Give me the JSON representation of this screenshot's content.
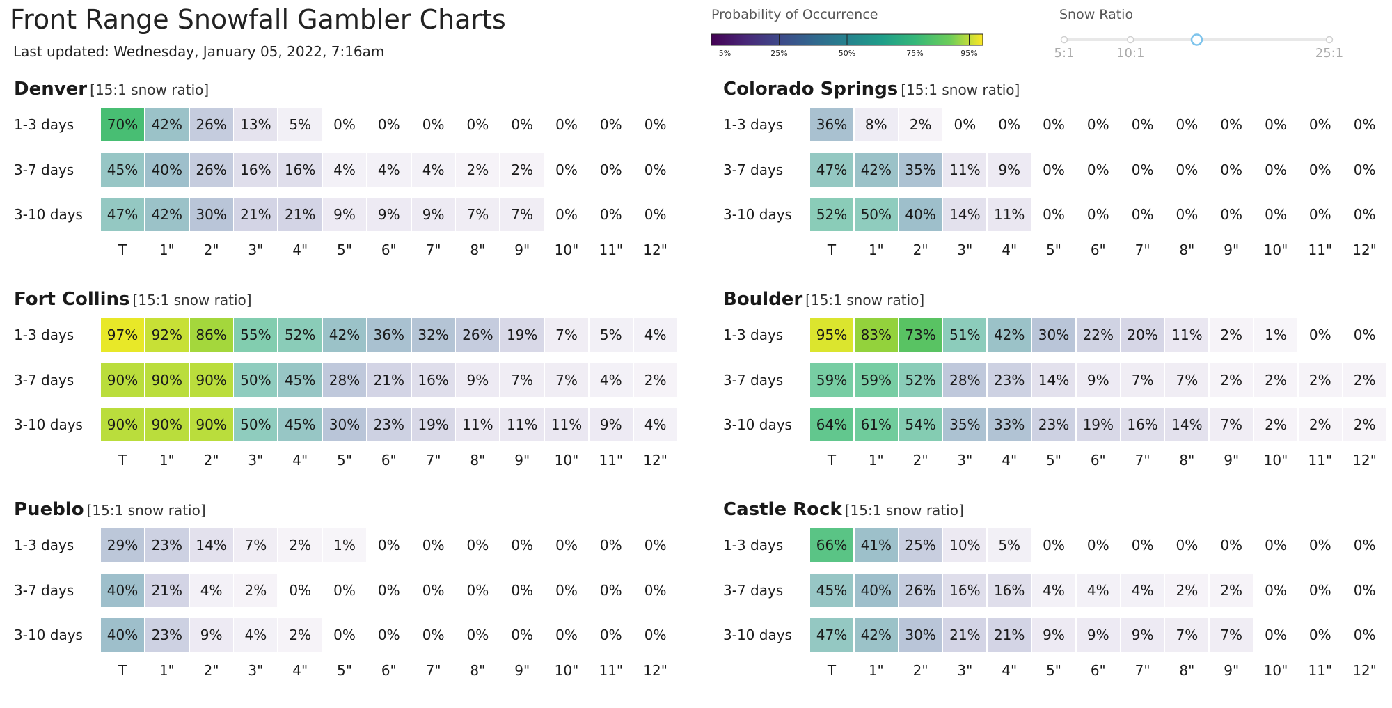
{
  "header": {
    "title": "Front Range Snowfall Gambler Charts",
    "updated": "Last updated: Wednesday, January 05, 2022, 7:16am"
  },
  "legend": {
    "title": "Probability of Occurrence",
    "ticks": [
      "5%",
      "25%",
      "50%",
      "75%",
      "95%"
    ],
    "scale": "viridis-light"
  },
  "snow_ratio": {
    "title": "Snow Ratio",
    "labels": [
      "5:1",
      "10:1",
      "25:1"
    ],
    "selected": "15:1"
  },
  "chart_data": [
    {
      "type": "heatmap",
      "title": "Denver",
      "subtitle": "[15:1 snow ratio]",
      "rows": [
        "1-3 days",
        "3-7 days",
        "3-10 days"
      ],
      "columns": [
        "T",
        "1\"",
        "2\"",
        "3\"",
        "4\"",
        "5\"",
        "6\"",
        "7\"",
        "8\"",
        "9\"",
        "10\"",
        "11\"",
        "12\""
      ],
      "values": [
        [
          70,
          42,
          26,
          13,
          5,
          0,
          0,
          0,
          0,
          0,
          0,
          0,
          0
        ],
        [
          45,
          40,
          26,
          16,
          16,
          4,
          4,
          4,
          2,
          2,
          0,
          0,
          0
        ],
        [
          47,
          42,
          30,
          21,
          21,
          9,
          9,
          9,
          7,
          7,
          0,
          0,
          0
        ]
      ]
    },
    {
      "type": "heatmap",
      "title": "Colorado Springs",
      "subtitle": "[15:1 snow ratio]",
      "rows": [
        "1-3 days",
        "3-7 days",
        "3-10 days"
      ],
      "columns": [
        "T",
        "1\"",
        "2\"",
        "3\"",
        "4\"",
        "5\"",
        "6\"",
        "7\"",
        "8\"",
        "9\"",
        "10\"",
        "11\"",
        "12\""
      ],
      "values": [
        [
          36,
          8,
          2,
          0,
          0,
          0,
          0,
          0,
          0,
          0,
          0,
          0,
          0
        ],
        [
          47,
          42,
          35,
          11,
          9,
          0,
          0,
          0,
          0,
          0,
          0,
          0,
          0
        ],
        [
          52,
          50,
          40,
          14,
          11,
          0,
          0,
          0,
          0,
          0,
          0,
          0,
          0
        ]
      ]
    },
    {
      "type": "heatmap",
      "title": "Fort Collins",
      "subtitle": "[15:1 snow ratio]",
      "rows": [
        "1-3 days",
        "3-7 days",
        "3-10 days"
      ],
      "columns": [
        "T",
        "1\"",
        "2\"",
        "3\"",
        "4\"",
        "5\"",
        "6\"",
        "7\"",
        "8\"",
        "9\"",
        "10\"",
        "11\"",
        "12\""
      ],
      "values": [
        [
          97,
          92,
          86,
          55,
          52,
          42,
          36,
          32,
          26,
          19,
          7,
          5,
          4
        ],
        [
          90,
          90,
          90,
          50,
          45,
          28,
          21,
          16,
          9,
          7,
          7,
          4,
          2
        ],
        [
          90,
          90,
          90,
          50,
          45,
          30,
          23,
          19,
          11,
          11,
          11,
          9,
          4
        ]
      ]
    },
    {
      "type": "heatmap",
      "title": "Boulder",
      "subtitle": "[15:1 snow ratio]",
      "rows": [
        "1-3 days",
        "3-7 days",
        "3-10 days"
      ],
      "columns": [
        "T",
        "1\"",
        "2\"",
        "3\"",
        "4\"",
        "5\"",
        "6\"",
        "7\"",
        "8\"",
        "9\"",
        "10\"",
        "11\"",
        "12\""
      ],
      "values": [
        [
          95,
          83,
          73,
          51,
          42,
          30,
          22,
          20,
          11,
          2,
          1,
          0,
          0
        ],
        [
          59,
          59,
          52,
          28,
          23,
          14,
          9,
          7,
          7,
          2,
          2,
          2,
          2
        ],
        [
          64,
          61,
          54,
          35,
          33,
          23,
          19,
          16,
          14,
          7,
          2,
          2,
          2
        ]
      ]
    },
    {
      "type": "heatmap",
      "title": "Pueblo",
      "subtitle": "[15:1 snow ratio]",
      "rows": [
        "1-3 days",
        "3-7 days",
        "3-10 days"
      ],
      "columns": [
        "T",
        "1\"",
        "2\"",
        "3\"",
        "4\"",
        "5\"",
        "6\"",
        "7\"",
        "8\"",
        "9\"",
        "10\"",
        "11\"",
        "12\""
      ],
      "values": [
        [
          29,
          23,
          14,
          7,
          2,
          1,
          0,
          0,
          0,
          0,
          0,
          0,
          0
        ],
        [
          40,
          21,
          4,
          2,
          0,
          0,
          0,
          0,
          0,
          0,
          0,
          0,
          0
        ],
        [
          40,
          23,
          9,
          4,
          2,
          0,
          0,
          0,
          0,
          0,
          0,
          0,
          0
        ]
      ]
    },
    {
      "type": "heatmap",
      "title": "Castle Rock",
      "subtitle": "[15:1 snow ratio]",
      "rows": [
        "1-3 days",
        "3-7 days",
        "3-10 days"
      ],
      "columns": [
        "T",
        "1\"",
        "2\"",
        "3\"",
        "4\"",
        "5\"",
        "6\"",
        "7\"",
        "8\"",
        "9\"",
        "10\"",
        "11\"",
        "12\""
      ],
      "values": [
        [
          66,
          41,
          25,
          10,
          5,
          0,
          0,
          0,
          0,
          0,
          0,
          0,
          0
        ],
        [
          45,
          40,
          26,
          16,
          16,
          4,
          4,
          4,
          2,
          2,
          0,
          0,
          0
        ],
        [
          47,
          42,
          30,
          21,
          21,
          9,
          9,
          9,
          7,
          7,
          0,
          0,
          0
        ]
      ]
    }
  ]
}
